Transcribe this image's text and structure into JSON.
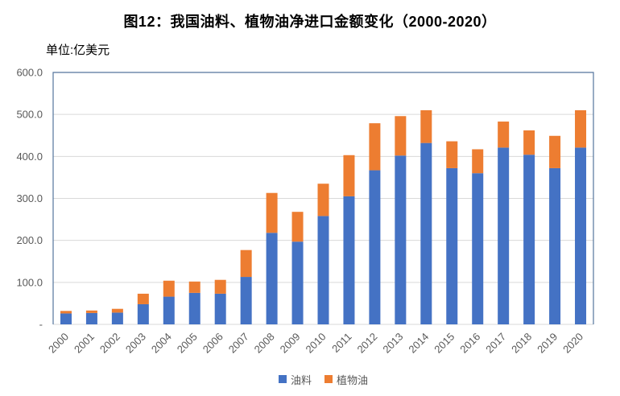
{
  "page": {
    "title": "图12：我国油料、植物油净进口金额变化（2000-2020）",
    "unit_label": "单位:亿美元"
  },
  "chart_data": {
    "type": "bar",
    "stacked": true,
    "title": "图12：我国油料、植物油净进口金额变化（2000-2020）",
    "unit": "单位:亿美元",
    "categories": [
      "2000",
      "2001",
      "2002",
      "2003",
      "2004",
      "2005",
      "2006",
      "2007",
      "2008",
      "2009",
      "2010",
      "2011",
      "2012",
      "2013",
      "2014",
      "2015",
      "2016",
      "2017",
      "2018",
      "2019",
      "2020"
    ],
    "series": [
      {
        "name": "油料",
        "color": "#4472C4",
        "values": [
          26,
          27,
          28,
          48,
          66,
          75,
          73,
          113,
          218,
          197,
          258,
          305,
          367,
          402,
          432,
          372,
          360,
          421,
          404,
          372,
          421
        ]
      },
      {
        "name": "植物油",
        "color": "#ED7D31",
        "values": [
          6,
          6,
          9,
          25,
          38,
          27,
          33,
          64,
          95,
          71,
          77,
          98,
          112,
          94,
          78,
          64,
          57,
          62,
          58,
          77,
          89
        ]
      }
    ],
    "ylim": [
      0,
      600
    ],
    "ytick_interval": 100,
    "ytick_labels": [
      "-",
      "100.0",
      "200.0",
      "300.0",
      "400.0",
      "500.0",
      "600.0"
    ],
    "grid": true,
    "legend_position": "bottom",
    "colors": {
      "grid": "#D9D9D9",
      "axis_border": "#54749C",
      "baseline": "#D9D9D9",
      "tick_text": "#595959"
    }
  }
}
